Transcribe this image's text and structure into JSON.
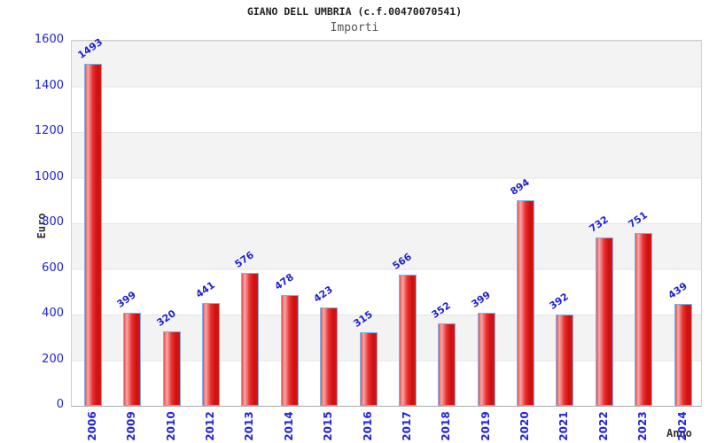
{
  "chart_data": {
    "type": "bar",
    "title": "GIANO DELL UMBRIA (c.f.00470070541)",
    "subtitle": "Importi",
    "xlabel": "Anno",
    "ylabel": "Euro",
    "categories": [
      "2006",
      "2009",
      "2010",
      "2012",
      "2013",
      "2014",
      "2015",
      "2016",
      "2017",
      "2018",
      "2019",
      "2020",
      "2021",
      "2022",
      "2023",
      "2024"
    ],
    "values": [
      1493,
      399,
      320,
      441,
      576,
      478,
      423,
      315,
      566,
      352,
      399,
      894,
      392,
      732,
      751,
      439
    ],
    "ylim": [
      0,
      1600
    ],
    "yticks": [
      0,
      200,
      400,
      600,
      800,
      1000,
      1200,
      1400,
      1600
    ],
    "legend_position": "none",
    "grid": "horizontal-bands-every-200",
    "colors": {
      "bar_fill": "#e03030",
      "bar_highlight": "#f8a8a8",
      "bar_border": "#7fb2e5",
      "value_label": "#2222cc",
      "tick_label": "#2222dd",
      "band_gray": "#f3f3f3",
      "axis_title": "#333333"
    }
  }
}
